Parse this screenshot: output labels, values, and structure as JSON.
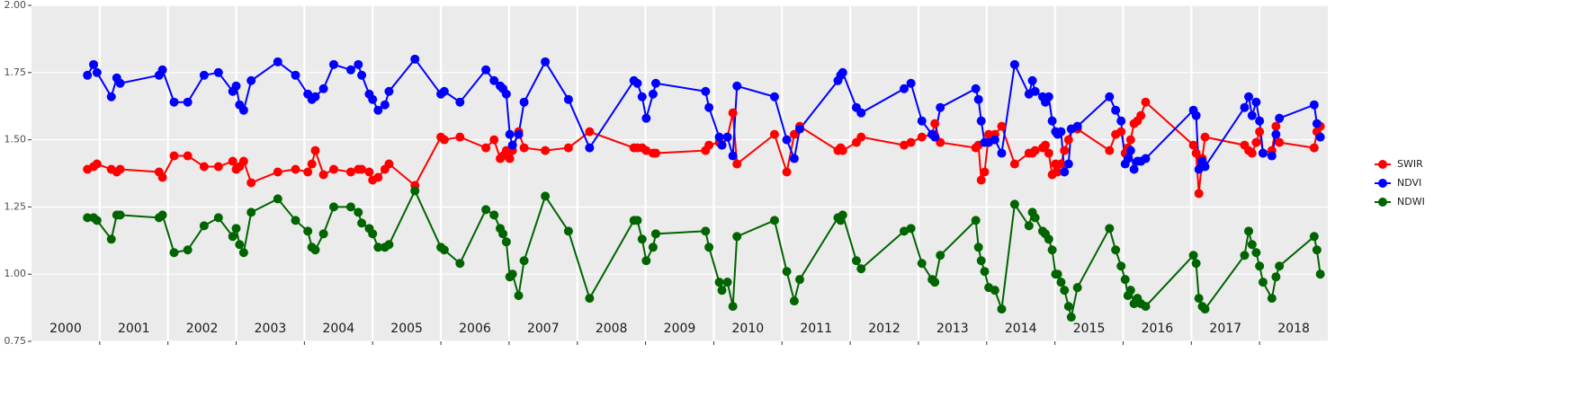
{
  "chart_data": {
    "type": "line",
    "x": [
      2000.82,
      2000.91,
      2000.96,
      2001.17,
      2001.25,
      2001.3,
      2001.87,
      2001.92,
      2002.09,
      2002.29,
      2002.53,
      2002.74,
      2002.95,
      2003.0,
      2003.05,
      2003.11,
      2003.22,
      2003.61,
      2003.87,
      2004.05,
      2004.11,
      2004.16,
      2004.28,
      2004.43,
      2004.68,
      2004.79,
      2004.84,
      2004.95,
      2005.0,
      2005.08,
      2005.18,
      2005.24,
      2005.62,
      2006.0,
      2006.05,
      2006.28,
      2006.66,
      2006.78,
      2006.87,
      2006.91,
      2006.96,
      2007.01,
      2007.05,
      2007.14,
      2007.22,
      2007.53,
      2007.87,
      2008.18,
      2008.83,
      2008.88,
      2008.95,
      2009.01,
      2009.11,
      2009.15,
      2009.88,
      2009.93,
      2010.08,
      2010.12,
      2010.2,
      2010.28,
      2010.34,
      2010.89,
      2011.07,
      2011.18,
      2011.26,
      2011.82,
      2011.86,
      2011.89,
      2012.09,
      2012.16,
      2012.79,
      2012.89,
      2013.05,
      2013.2,
      2013.24,
      2013.32,
      2013.84,
      2013.88,
      2013.92,
      2013.97,
      2014.03,
      2014.12,
      2014.22,
      2014.41,
      2014.62,
      2014.67,
      2014.71,
      2014.82,
      2014.86,
      2014.91,
      2014.96,
      2015.01,
      2015.04,
      2015.09,
      2015.14,
      2015.2,
      2015.24,
      2015.33,
      2015.8,
      2015.89,
      2015.97,
      2016.03,
      2016.07,
      2016.11,
      2016.16,
      2016.21,
      2016.26,
      2016.33,
      2017.03,
      2017.07,
      2017.11,
      2017.16,
      2017.2,
      2017.78,
      2017.84,
      2017.89,
      2017.95,
      2018.0,
      2018.05,
      2018.18,
      2018.24,
      2018.29,
      2018.8,
      2018.84,
      2018.89
    ],
    "series": [
      {
        "name": "SWIR",
        "color": "#ff0000",
        "values": [
          1.39,
          1.4,
          1.41,
          1.39,
          1.38,
          1.39,
          1.38,
          1.36,
          1.44,
          1.44,
          1.4,
          1.4,
          1.42,
          1.39,
          1.4,
          1.42,
          1.34,
          1.38,
          1.39,
          1.38,
          1.41,
          1.46,
          1.37,
          1.39,
          1.38,
          1.39,
          1.39,
          1.38,
          1.35,
          1.36,
          1.39,
          1.41,
          1.33,
          1.51,
          1.5,
          1.51,
          1.47,
          1.5,
          1.43,
          1.44,
          1.46,
          1.43,
          1.46,
          1.53,
          1.47,
          1.46,
          1.47,
          1.53,
          1.47,
          1.47,
          1.47,
          1.46,
          1.45,
          1.45,
          1.46,
          1.48,
          1.49,
          1.48,
          1.51,
          1.6,
          1.41,
          1.52,
          1.38,
          1.52,
          1.55,
          1.46,
          1.47,
          1.46,
          1.49,
          1.51,
          1.48,
          1.49,
          1.51,
          1.52,
          1.56,
          1.49,
          1.47,
          1.48,
          1.35,
          1.38,
          1.52,
          1.52,
          1.55,
          1.41,
          1.45,
          1.45,
          1.46,
          1.47,
          1.48,
          1.45,
          1.37,
          1.41,
          1.38,
          1.41,
          1.46,
          1.5,
          1.54,
          1.54,
          1.46,
          1.52,
          1.53,
          1.45,
          1.47,
          1.5,
          1.56,
          1.57,
          1.59,
          1.64,
          1.48,
          1.45,
          1.3,
          1.43,
          1.51,
          1.48,
          1.46,
          1.45,
          1.49,
          1.53,
          1.45,
          1.46,
          1.55,
          1.49,
          1.47,
          1.53,
          1.55
        ]
      },
      {
        "name": "NDVI",
        "color": "#0000ff",
        "values": [
          1.74,
          1.78,
          1.75,
          1.66,
          1.73,
          1.71,
          1.74,
          1.76,
          1.64,
          1.64,
          1.74,
          1.75,
          1.68,
          1.7,
          1.63,
          1.61,
          1.72,
          1.79,
          1.74,
          1.67,
          1.65,
          1.66,
          1.69,
          1.78,
          1.76,
          1.78,
          1.74,
          1.67,
          1.65,
          1.61,
          1.63,
          1.68,
          1.8,
          1.67,
          1.68,
          1.64,
          1.76,
          1.72,
          1.7,
          1.69,
          1.67,
          1.52,
          1.48,
          1.52,
          1.64,
          1.79,
          1.65,
          1.47,
          1.72,
          1.71,
          1.66,
          1.58,
          1.67,
          1.71,
          1.68,
          1.62,
          1.51,
          1.48,
          1.51,
          1.44,
          1.7,
          1.66,
          1.5,
          1.43,
          1.54,
          1.72,
          1.74,
          1.75,
          1.62,
          1.6,
          1.69,
          1.71,
          1.57,
          1.52,
          1.51,
          1.62,
          1.69,
          1.65,
          1.57,
          1.49,
          1.49,
          1.5,
          1.45,
          1.78,
          1.67,
          1.72,
          1.68,
          1.66,
          1.64,
          1.66,
          1.57,
          1.53,
          1.52,
          1.53,
          1.38,
          1.41,
          1.54,
          1.55,
          1.66,
          1.61,
          1.57,
          1.41,
          1.43,
          1.46,
          1.39,
          1.42,
          1.42,
          1.43,
          1.61,
          1.59,
          1.39,
          1.42,
          1.4,
          1.62,
          1.66,
          1.59,
          1.64,
          1.57,
          1.45,
          1.44,
          1.52,
          1.58,
          1.63,
          1.56,
          1.51
        ]
      },
      {
        "name": "NDWI",
        "color": "#006400",
        "values": [
          1.21,
          1.21,
          1.2,
          1.13,
          1.22,
          1.22,
          1.21,
          1.22,
          1.08,
          1.09,
          1.18,
          1.21,
          1.14,
          1.17,
          1.11,
          1.08,
          1.23,
          1.28,
          1.2,
          1.16,
          1.1,
          1.09,
          1.15,
          1.25,
          1.25,
          1.23,
          1.19,
          1.17,
          1.15,
          1.1,
          1.1,
          1.11,
          1.31,
          1.1,
          1.09,
          1.04,
          1.24,
          1.22,
          1.17,
          1.15,
          1.12,
          0.99,
          1.0,
          0.92,
          1.05,
          1.29,
          1.16,
          0.91,
          1.2,
          1.2,
          1.13,
          1.05,
          1.1,
          1.15,
          1.16,
          1.1,
          0.97,
          0.94,
          0.97,
          0.88,
          1.14,
          1.2,
          1.01,
          0.9,
          0.98,
          1.21,
          1.2,
          1.22,
          1.05,
          1.02,
          1.16,
          1.17,
          1.04,
          0.98,
          0.97,
          1.07,
          1.2,
          1.1,
          1.05,
          1.01,
          0.95,
          0.94,
          0.87,
          1.26,
          1.18,
          1.23,
          1.21,
          1.16,
          1.15,
          1.13,
          1.09,
          1.0,
          1.0,
          0.97,
          0.94,
          0.88,
          0.84,
          0.95,
          1.17,
          1.09,
          1.03,
          0.98,
          0.92,
          0.94,
          0.89,
          0.91,
          0.89,
          0.88,
          1.07,
          1.04,
          0.91,
          0.88,
          0.87,
          1.07,
          1.16,
          1.11,
          1.08,
          1.03,
          0.97,
          0.91,
          0.99,
          1.03,
          1.14,
          1.09,
          1.0
        ]
      }
    ],
    "xlim": [
      2000,
      2019
    ],
    "xticks": [
      2001,
      2002,
      2003,
      2004,
      2005,
      2006,
      2007,
      2008,
      2009,
      2010,
      2011,
      2012,
      2013,
      2014,
      2015,
      2016,
      2017,
      2018
    ],
    "year_labels": [
      2000,
      2001,
      2002,
      2003,
      2004,
      2005,
      2006,
      2007,
      2008,
      2009,
      2010,
      2011,
      2012,
      2013,
      2014,
      2015,
      2016,
      2017,
      2018
    ],
    "ylim": [
      0.75,
      2.0
    ],
    "yticks": [
      0.75,
      {
        "value": 1.0,
        "label": "1.00"
      },
      1.25,
      {
        "value": 1.5,
        "label": "1.50"
      },
      1.75,
      {
        "value": 2.0,
        "label": "2.00"
      }
    ],
    "grid": true,
    "legend": "right"
  }
}
